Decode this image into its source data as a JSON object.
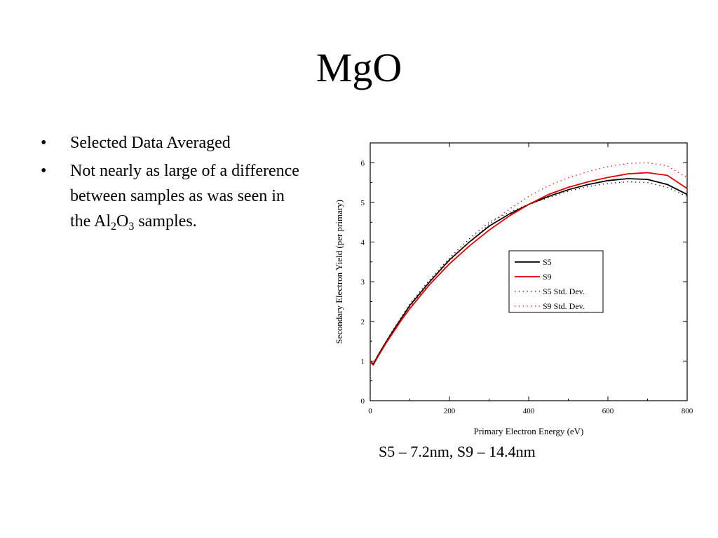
{
  "slide": {
    "title": "MgO",
    "bullets": [
      {
        "parts": [
          {
            "text": "Selected Data Averaged"
          }
        ]
      },
      {
        "parts": [
          {
            "text": "Not nearly as large of a difference between samples as was seen in the Al"
          },
          {
            "text": "2",
            "sub": true
          },
          {
            "text": "O"
          },
          {
            "text": "3",
            "sub": true
          },
          {
            "text": " samples."
          }
        ]
      }
    ],
    "caption": "S5 – 7.2nm, S9 – 14.4nm"
  },
  "chart_data": {
    "type": "line",
    "title": "",
    "xlabel": "Primary Electron Energy (eV)",
    "ylabel": "Secondary Electron Yield (per primary)",
    "xlim": [
      0,
      800
    ],
    "ylim": [
      0,
      6.5
    ],
    "xticks": [
      0,
      200,
      400,
      600,
      800
    ],
    "yticks": [
      0,
      1,
      2,
      3,
      4,
      5,
      6
    ],
    "grid": false,
    "legend": "center-right",
    "series": [
      {
        "name": "S5",
        "style": "solid",
        "color": "#000000",
        "x": [
          0,
          5,
          8,
          12,
          20,
          40,
          60,
          80,
          100,
          150,
          200,
          250,
          300,
          350,
          400,
          450,
          500,
          550,
          600,
          650,
          700,
          750,
          800
        ],
        "y": [
          1.0,
          0.95,
          0.92,
          1.0,
          1.15,
          1.48,
          1.8,
          2.1,
          2.4,
          3.0,
          3.55,
          4.0,
          4.4,
          4.7,
          4.95,
          5.15,
          5.32,
          5.45,
          5.55,
          5.6,
          5.58,
          5.45,
          5.2
        ]
      },
      {
        "name": "S9",
        "style": "solid",
        "color": "#e00000",
        "x": [
          0,
          5,
          8,
          12,
          20,
          40,
          60,
          80,
          100,
          150,
          200,
          250,
          300,
          350,
          400,
          450,
          500,
          550,
          600,
          650,
          700,
          750,
          800
        ],
        "y": [
          1.0,
          0.92,
          0.9,
          0.98,
          1.12,
          1.45,
          1.75,
          2.05,
          2.32,
          2.93,
          3.45,
          3.9,
          4.3,
          4.65,
          4.95,
          5.2,
          5.38,
          5.52,
          5.63,
          5.72,
          5.75,
          5.68,
          5.35
        ]
      },
      {
        "name": "S5 Std. Dev.",
        "style": "dotted",
        "color": "#000000",
        "x": [
          0,
          5,
          8,
          12,
          20,
          40,
          60,
          80,
          100,
          150,
          200,
          250,
          300,
          350,
          400,
          450,
          500,
          550,
          600,
          650,
          700,
          750,
          800
        ],
        "y": [
          1.0,
          0.95,
          0.93,
          1.0,
          1.16,
          1.5,
          1.82,
          2.13,
          2.44,
          3.05,
          3.6,
          4.08,
          4.5,
          4.75,
          4.95,
          5.12,
          5.28,
          5.4,
          5.48,
          5.52,
          5.5,
          5.38,
          5.15
        ]
      },
      {
        "name": "S9 Std. Dev.",
        "style": "dotted",
        "color": "#e00000",
        "x": [
          0,
          5,
          8,
          12,
          20,
          40,
          60,
          80,
          100,
          150,
          200,
          250,
          300,
          350,
          400,
          450,
          500,
          550,
          600,
          650,
          700,
          750,
          800
        ],
        "y": [
          1.0,
          0.93,
          0.9,
          0.99,
          1.13,
          1.47,
          1.78,
          2.08,
          2.36,
          2.98,
          3.52,
          4.0,
          4.45,
          4.82,
          5.15,
          5.42,
          5.62,
          5.78,
          5.9,
          5.98,
          6.0,
          5.92,
          5.62
        ]
      }
    ]
  }
}
